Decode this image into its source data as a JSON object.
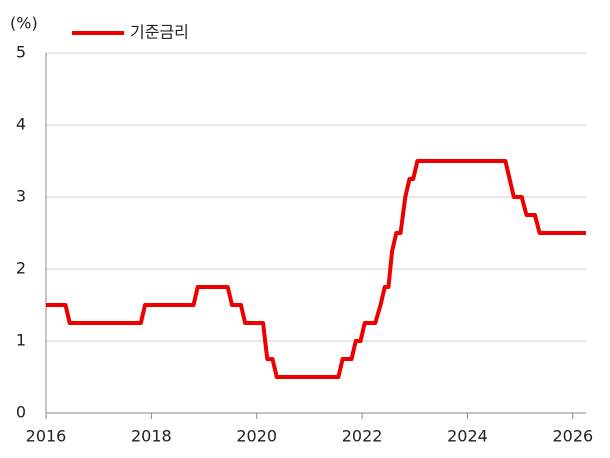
{
  "chart_data": {
    "type": "line",
    "y_label": "(%)",
    "x": [
      2016.0,
      2016.37,
      2016.45,
      2017.8,
      2017.88,
      2018.8,
      2018.88,
      2019.45,
      2019.53,
      2019.7,
      2019.78,
      2020.12,
      2020.2,
      2020.3,
      2020.38,
      2021.55,
      2021.63,
      2021.8,
      2021.88,
      2021.97,
      2022.05,
      2022.25,
      2022.35,
      2022.43,
      2022.5,
      2022.57,
      2022.65,
      2022.73,
      2022.82,
      2022.9,
      2022.97,
      2023.05,
      2024.72,
      2024.8,
      2024.88,
      2025.03,
      2025.12,
      2025.28,
      2025.37,
      2026.25
    ],
    "series": [
      {
        "name": "기준금리",
        "color": "#ee0000",
        "values": [
          1.5,
          1.5,
          1.25,
          1.25,
          1.5,
          1.5,
          1.75,
          1.75,
          1.5,
          1.5,
          1.25,
          1.25,
          0.75,
          0.75,
          0.5,
          0.5,
          0.75,
          0.75,
          1.0,
          1.0,
          1.25,
          1.25,
          1.5,
          1.75,
          1.75,
          2.25,
          2.5,
          2.5,
          3.0,
          3.25,
          3.25,
          3.5,
          3.5,
          3.25,
          3.0,
          3.0,
          2.75,
          2.75,
          2.5,
          2.5
        ]
      }
    ],
    "xlim": [
      2016,
      2026.25
    ],
    "xticks": [
      2016,
      2018,
      2020,
      2022,
      2024,
      2026
    ],
    "ylim": [
      0,
      5
    ],
    "yticks": [
      0,
      1,
      2,
      3,
      4,
      5
    ],
    "grid": true,
    "legend": "top-left"
  }
}
